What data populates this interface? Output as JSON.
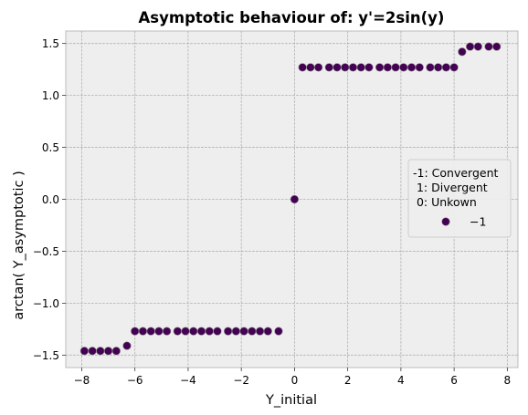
{
  "chart_data": {
    "type": "scatter",
    "title": "Asymptotic behaviour of: y'=2sin(y)",
    "xlabel": "Y_initial",
    "ylabel": "arctan( Y_asymptotic )",
    "xlim": [
      -8.6,
      8.4
    ],
    "ylim": [
      -1.62,
      1.62
    ],
    "xticks": [
      -8,
      -6,
      -4,
      -2,
      0,
      2,
      4,
      6,
      8
    ],
    "xtick_labels": [
      "−8",
      "−6",
      "−4",
      "−2",
      "0",
      "2",
      "4",
      "6",
      "8"
    ],
    "yticks": [
      -1.5,
      -1.0,
      -0.5,
      0.0,
      0.5,
      1.0,
      1.5
    ],
    "ytick_labels": [
      "−1.5",
      "−1.0",
      "−0.5",
      "0.0",
      "0.5",
      "1.0",
      "1.5"
    ],
    "grid": true,
    "legend_position": "center-right",
    "legend_title": "-1: Convergent\n 1: Divergent\n 0: Unkown",
    "series": [
      {
        "name": "−1",
        "color": "#440154",
        "x": [
          -7.9,
          -7.6,
          -7.3,
          -7.0,
          -6.7,
          -6.3,
          -6.0,
          -5.7,
          -5.4,
          -5.1,
          -4.8,
          -4.4,
          -4.1,
          -3.8,
          -3.5,
          -3.2,
          -2.9,
          -2.5,
          -2.2,
          -1.9,
          -1.6,
          -1.3,
          -1.0,
          -0.6,
          0.0,
          0.3,
          0.6,
          0.9,
          1.3,
          1.6,
          1.9,
          2.2,
          2.5,
          2.8,
          3.2,
          3.5,
          3.8,
          4.1,
          4.4,
          4.7,
          5.1,
          5.4,
          5.7,
          6.0,
          6.3,
          6.6,
          6.9,
          7.3,
          7.6
        ],
        "y": [
          -1.46,
          -1.46,
          -1.46,
          -1.46,
          -1.46,
          -1.41,
          -1.27,
          -1.27,
          -1.27,
          -1.27,
          -1.27,
          -1.27,
          -1.27,
          -1.27,
          -1.27,
          -1.27,
          -1.27,
          -1.27,
          -1.27,
          -1.27,
          -1.27,
          -1.27,
          -1.27,
          -1.27,
          0.0,
          1.27,
          1.27,
          1.27,
          1.27,
          1.27,
          1.27,
          1.27,
          1.27,
          1.27,
          1.27,
          1.27,
          1.27,
          1.27,
          1.27,
          1.27,
          1.27,
          1.27,
          1.27,
          1.27,
          1.42,
          1.47,
          1.47,
          1.47,
          1.47
        ]
      }
    ]
  }
}
